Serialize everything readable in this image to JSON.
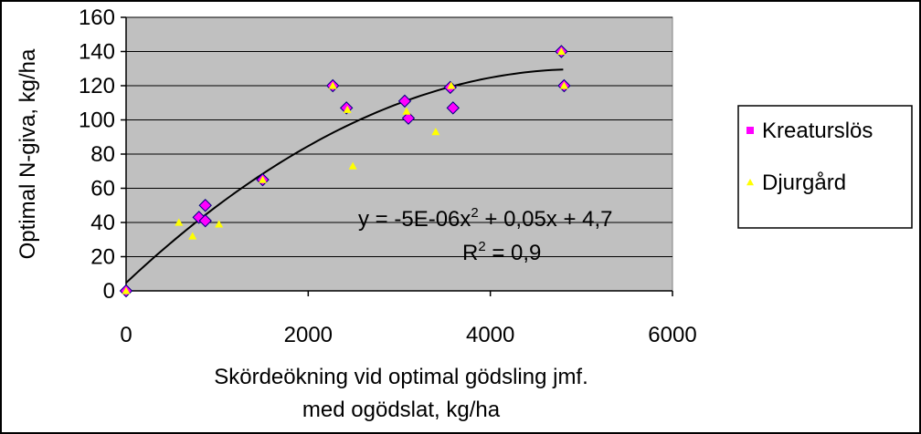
{
  "chart_data": {
    "type": "scatter",
    "xlabel_lines": [
      "Skördeökning vid optimal gödsling jmf.",
      "med ogödslat, kg/ha"
    ],
    "ylabel": "Optimal N-giva,  kg/ha",
    "xlim": [
      0,
      6000
    ],
    "ylim": [
      0,
      160
    ],
    "x_ticks": [
      0,
      2000,
      4000,
      6000
    ],
    "y_ticks": [
      0,
      20,
      40,
      60,
      80,
      100,
      120,
      140,
      160
    ],
    "grid": {
      "horizontal": true,
      "vertical": false
    },
    "plot_background": "#c0c0c0",
    "legend_position": "right",
    "series": [
      {
        "name": "Kreaturslös",
        "marker": "diamond",
        "color": "#ff00ff",
        "points": [
          [
            0,
            0
          ],
          [
            800,
            43
          ],
          [
            870,
            50
          ],
          [
            870,
            41
          ],
          [
            1500,
            65
          ],
          [
            2270,
            120
          ],
          [
            2420,
            107
          ],
          [
            3060,
            111
          ],
          [
            3100,
            101
          ],
          [
            3560,
            119
          ],
          [
            3590,
            107
          ],
          [
            4780,
            140
          ],
          [
            4810,
            120
          ]
        ]
      },
      {
        "name": "Djurgård",
        "marker": "triangle",
        "color": "#ffff00",
        "points": [
          [
            0,
            0
          ],
          [
            580,
            40
          ],
          [
            730,
            32
          ],
          [
            1020,
            39
          ],
          [
            1500,
            65
          ],
          [
            2270,
            120
          ],
          [
            2430,
            106
          ],
          [
            2490,
            73
          ],
          [
            3080,
            105
          ],
          [
            3400,
            93
          ],
          [
            3570,
            120
          ],
          [
            4780,
            140
          ],
          [
            4810,
            120
          ]
        ]
      }
    ],
    "trendline": {
      "type": "polynomial",
      "coefficients": {
        "a": -5e-06,
        "b": 0.05,
        "c": 4.7
      },
      "x_range": [
        0,
        4800
      ],
      "equation_prefix": "y = -5E-06x",
      "equation_exponent": "2",
      "equation_suffix": " + 0,05x + 4,7",
      "r2_prefix": "R",
      "r2_exponent": "2",
      "r2_suffix": " = 0,9"
    }
  }
}
